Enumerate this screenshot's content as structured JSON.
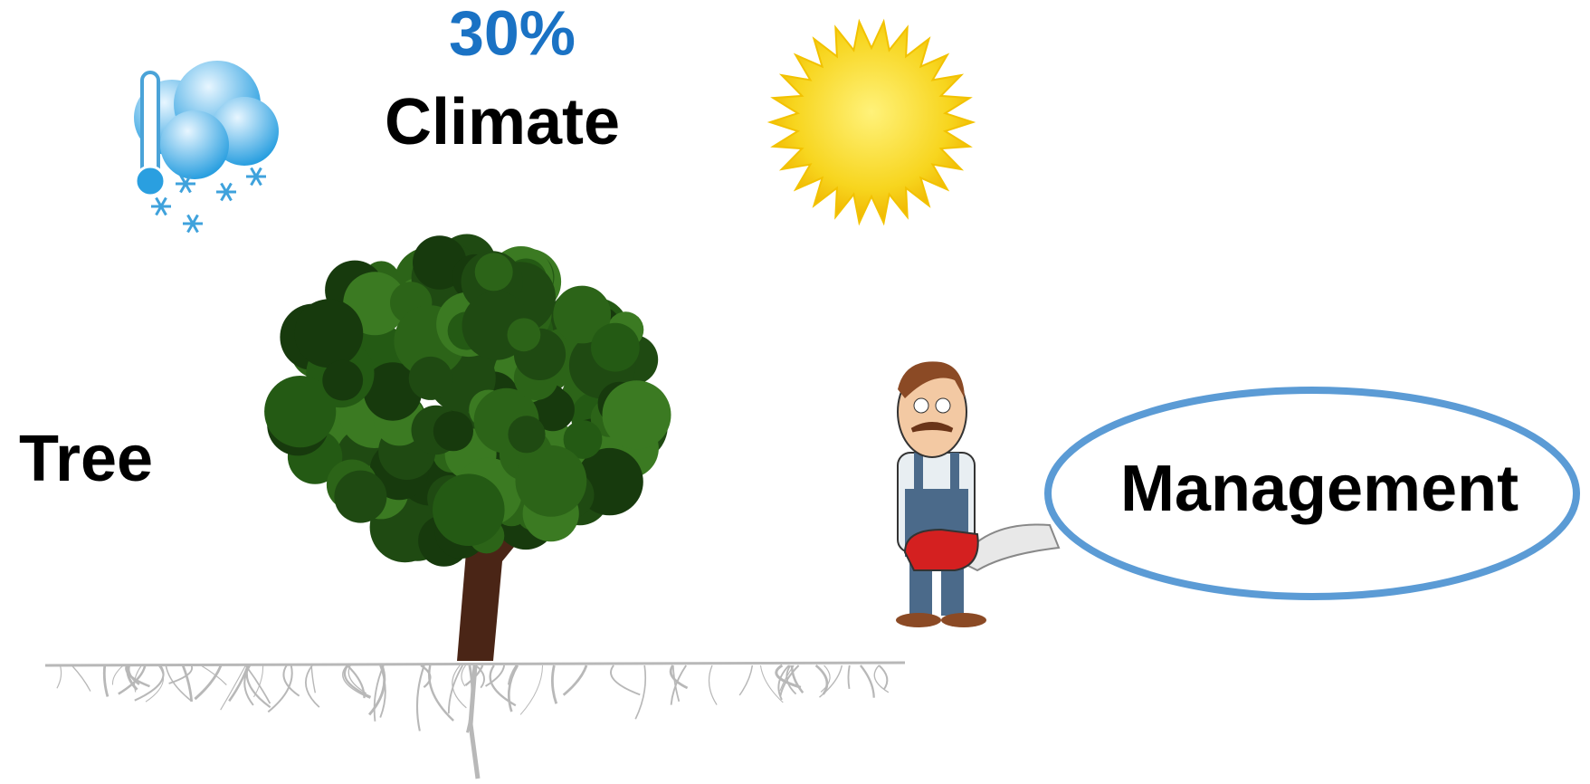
{
  "labels": {
    "percent": "30%",
    "climate": "Climate",
    "tree": "Tree",
    "management": "Management"
  }
}
